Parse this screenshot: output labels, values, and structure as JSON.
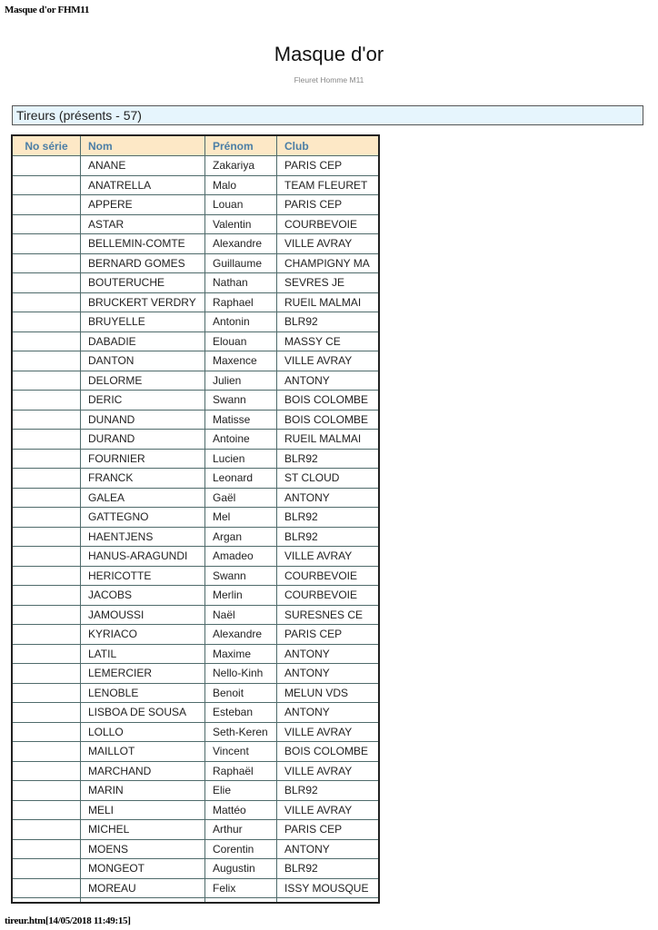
{
  "print_header": "Masque d'or FHM11",
  "print_footer": "tireur.htm[14/05/2018 11:49:15]",
  "title": "Masque d'or",
  "subtitle": "Fleuret Homme M11",
  "section_title": "Tireurs (présents - 57)",
  "colors": {
    "header_bg": "#fde8c6",
    "header_text": "#4b7ea6",
    "section_bg": "#e6f5fd"
  },
  "table": {
    "columns": [
      "No série",
      "Nom",
      "Prénom",
      "Club"
    ],
    "rows": [
      {
        "no": "",
        "nom": "ANANE",
        "prenom": "Zakariya",
        "club": "PARIS CEP"
      },
      {
        "no": "",
        "nom": "ANATRELLA",
        "prenom": "Malo",
        "club": "TEAM FLEURET"
      },
      {
        "no": "",
        "nom": "APPERE",
        "prenom": "Louan",
        "club": "PARIS CEP"
      },
      {
        "no": "",
        "nom": "ASTAR",
        "prenom": "Valentin",
        "club": "COURBEVOIE"
      },
      {
        "no": "",
        "nom": "BELLEMIN-COMTE",
        "prenom": "Alexandre",
        "club": "VILLE AVRAY"
      },
      {
        "no": "",
        "nom": "BERNARD GOMES",
        "prenom": "Guillaume",
        "club": "CHAMPIGNY MA"
      },
      {
        "no": "",
        "nom": "BOUTERUCHE",
        "prenom": "Nathan",
        "club": "SEVRES JE"
      },
      {
        "no": "",
        "nom": "BRUCKERT VERDRY",
        "prenom": "Raphael",
        "club": "RUEIL MALMAI"
      },
      {
        "no": "",
        "nom": "BRUYELLE",
        "prenom": "Antonin",
        "club": "BLR92"
      },
      {
        "no": "",
        "nom": "DABADIE",
        "prenom": "Elouan",
        "club": "MASSY CE"
      },
      {
        "no": "",
        "nom": "DANTON",
        "prenom": "Maxence",
        "club": "VILLE AVRAY"
      },
      {
        "no": "",
        "nom": "DELORME",
        "prenom": "Julien",
        "club": "ANTONY"
      },
      {
        "no": "",
        "nom": "DERIC",
        "prenom": "Swann",
        "club": "BOIS COLOMBE"
      },
      {
        "no": "",
        "nom": "DUNAND",
        "prenom": "Matisse",
        "club": "BOIS COLOMBE"
      },
      {
        "no": "",
        "nom": "DURAND",
        "prenom": "Antoine",
        "club": "RUEIL MALMAI"
      },
      {
        "no": "",
        "nom": "FOURNIER",
        "prenom": "Lucien",
        "club": "BLR92"
      },
      {
        "no": "",
        "nom": "FRANCK",
        "prenom": "Leonard",
        "club": "ST CLOUD"
      },
      {
        "no": "",
        "nom": "GALEA",
        "prenom": "Gaël",
        "club": "ANTONY"
      },
      {
        "no": "",
        "nom": "GATTEGNO",
        "prenom": "Mel",
        "club": "BLR92"
      },
      {
        "no": "",
        "nom": "HAENTJENS",
        "prenom": "Argan",
        "club": "BLR92"
      },
      {
        "no": "",
        "nom": "HANUS-ARAGUNDI",
        "prenom": "Amadeo",
        "club": "VILLE AVRAY"
      },
      {
        "no": "",
        "nom": "HERICOTTE",
        "prenom": "Swann",
        "club": "COURBEVOIE"
      },
      {
        "no": "",
        "nom": "JACOBS",
        "prenom": "Merlin",
        "club": "COURBEVOIE"
      },
      {
        "no": "",
        "nom": "JAMOUSSI",
        "prenom": "Naël",
        "club": "SURESNES CE"
      },
      {
        "no": "",
        "nom": "KYRIACO",
        "prenom": "Alexandre",
        "club": "PARIS CEP"
      },
      {
        "no": "",
        "nom": "LATIL",
        "prenom": "Maxime",
        "club": "ANTONY"
      },
      {
        "no": "",
        "nom": "LEMERCIER",
        "prenom": "Nello-Kinh",
        "club": "ANTONY"
      },
      {
        "no": "",
        "nom": "LENOBLE",
        "prenom": "Benoit",
        "club": "MELUN VDS"
      },
      {
        "no": "",
        "nom": "LISBOA DE SOUSA",
        "prenom": "Esteban",
        "club": "ANTONY"
      },
      {
        "no": "",
        "nom": "LOLLO",
        "prenom": "Seth-Keren",
        "club": "VILLE AVRAY"
      },
      {
        "no": "",
        "nom": "MAILLOT",
        "prenom": "Vincent",
        "club": "BOIS COLOMBE"
      },
      {
        "no": "",
        "nom": "MARCHAND",
        "prenom": "Raphaël",
        "club": "VILLE AVRAY"
      },
      {
        "no": "",
        "nom": "MARIN",
        "prenom": "Elie",
        "club": "BLR92"
      },
      {
        "no": "",
        "nom": "MELI",
        "prenom": "Mattéo",
        "club": "VILLE AVRAY"
      },
      {
        "no": "",
        "nom": "MICHEL",
        "prenom": "Arthur",
        "club": "PARIS CEP"
      },
      {
        "no": "",
        "nom": "MOENS",
        "prenom": "Corentin",
        "club": "ANTONY"
      },
      {
        "no": "",
        "nom": "MONGEOT",
        "prenom": "Augustin",
        "club": "BLR92"
      },
      {
        "no": "",
        "nom": "MOREAU",
        "prenom": "Felix",
        "club": "ISSY MOUSQUE"
      }
    ]
  }
}
